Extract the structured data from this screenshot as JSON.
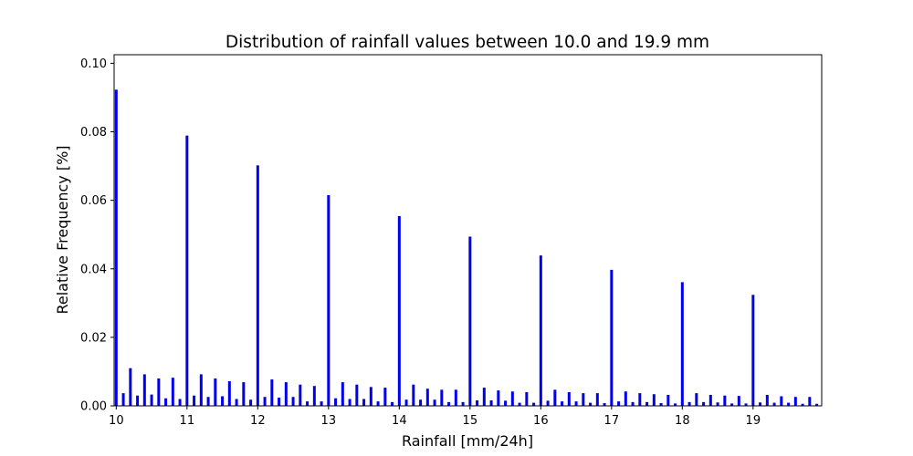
{
  "chart_data": {
    "type": "bar",
    "title": "Distribution of rainfall values between 10.0 and 19.9 mm",
    "xlabel": "Rainfall [mm/24h]",
    "ylabel": "Relative Frequency [%]",
    "xlim": [
      9.97,
      19.97
    ],
    "ylim": [
      0,
      0.1025
    ],
    "xticks": [
      10,
      11,
      12,
      13,
      14,
      15,
      16,
      17,
      18,
      19
    ],
    "yticks": [
      0.0,
      0.02,
      0.04,
      0.06,
      0.08,
      0.1
    ],
    "ytick_labels": [
      "0.00",
      "0.02",
      "0.04",
      "0.06",
      "0.08",
      "0.10"
    ],
    "bar_color": "#0000ee",
    "grid": false,
    "legend": "none",
    "x": [
      10.0,
      10.1,
      10.2,
      10.3,
      10.4,
      10.5,
      10.6,
      10.7,
      10.8,
      10.9,
      11.0,
      11.1,
      11.2,
      11.3,
      11.4,
      11.5,
      11.6,
      11.7,
      11.8,
      11.9,
      12.0,
      12.1,
      12.2,
      12.3,
      12.4,
      12.5,
      12.6,
      12.7,
      12.8,
      12.9,
      13.0,
      13.1,
      13.2,
      13.3,
      13.4,
      13.5,
      13.6,
      13.7,
      13.8,
      13.9,
      14.0,
      14.1,
      14.2,
      14.3,
      14.4,
      14.5,
      14.6,
      14.7,
      14.8,
      14.9,
      15.0,
      15.1,
      15.2,
      15.3,
      15.4,
      15.5,
      15.6,
      15.7,
      15.8,
      15.9,
      16.0,
      16.1,
      16.2,
      16.3,
      16.4,
      16.5,
      16.6,
      16.7,
      16.8,
      16.9,
      17.0,
      17.1,
      17.2,
      17.3,
      17.4,
      17.5,
      17.6,
      17.7,
      17.8,
      17.9,
      18.0,
      18.1,
      18.2,
      18.3,
      18.4,
      18.5,
      18.6,
      18.7,
      18.8,
      18.9,
      19.0,
      19.1,
      19.2,
      19.3,
      19.4,
      19.5,
      19.6,
      19.7,
      19.8,
      19.9
    ],
    "values": [
      0.0923,
      0.0037,
      0.011,
      0.003,
      0.0092,
      0.0033,
      0.008,
      0.0022,
      0.0082,
      0.002,
      0.0789,
      0.003,
      0.0092,
      0.0026,
      0.008,
      0.0028,
      0.0072,
      0.002,
      0.0069,
      0.0018,
      0.0702,
      0.0026,
      0.0077,
      0.0024,
      0.0069,
      0.0026,
      0.0062,
      0.0013,
      0.0058,
      0.0013,
      0.0615,
      0.0022,
      0.0069,
      0.002,
      0.0062,
      0.002,
      0.0055,
      0.0013,
      0.0053,
      0.0011,
      0.0554,
      0.0018,
      0.0062,
      0.0018,
      0.005,
      0.0018,
      0.0047,
      0.0011,
      0.0047,
      0.0011,
      0.0494,
      0.0016,
      0.0053,
      0.0016,
      0.0045,
      0.0015,
      0.0042,
      0.0009,
      0.004,
      0.0009,
      0.0439,
      0.0015,
      0.0047,
      0.0013,
      0.004,
      0.0013,
      0.0037,
      0.0009,
      0.0037,
      0.0008,
      0.0397,
      0.0013,
      0.0042,
      0.0011,
      0.0037,
      0.0011,
      0.0034,
      0.0008,
      0.0032,
      0.0007,
      0.0361,
      0.0011,
      0.0037,
      0.0011,
      0.0032,
      0.001,
      0.003,
      0.0007,
      0.0029,
      0.0007,
      0.0324,
      0.001,
      0.0032,
      0.0009,
      0.0028,
      0.0009,
      0.0026,
      0.0006,
      0.0026,
      0.0006
    ]
  }
}
